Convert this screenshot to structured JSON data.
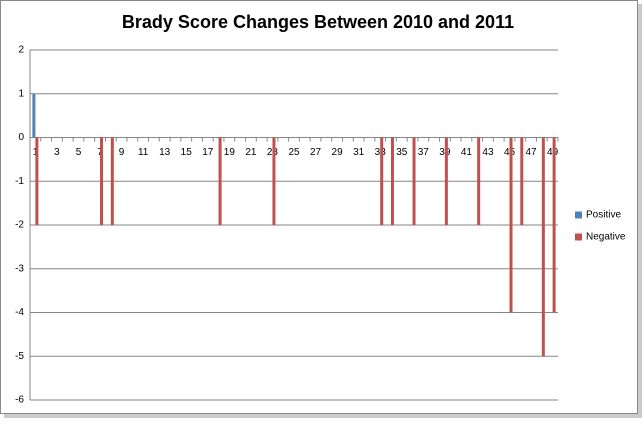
{
  "chart_data": {
    "type": "bar",
    "title": "Brady Score Changes Between 2010 and 2011",
    "categories": [
      1,
      null,
      3,
      null,
      5,
      null,
      7,
      null,
      9,
      null,
      11,
      null,
      13,
      null,
      15,
      null,
      17,
      null,
      19,
      null,
      21,
      null,
      23,
      null,
      25,
      null,
      27,
      null,
      29,
      null,
      31,
      null,
      33,
      null,
      35,
      null,
      37,
      null,
      39,
      null,
      41,
      null,
      43,
      null,
      45,
      null,
      47,
      null,
      49
    ],
    "series": [
      {
        "name": "Positive",
        "color": "#4f81bd",
        "values": [
          1,
          0,
          0,
          0,
          0,
          0,
          0,
          0,
          0,
          0,
          0,
          0,
          0,
          0,
          0,
          0,
          0,
          0,
          0,
          0,
          0,
          0,
          0,
          0,
          0,
          0,
          0,
          0,
          0,
          0,
          0,
          0,
          0,
          0,
          0,
          0,
          0,
          0,
          0,
          0,
          0,
          0,
          0,
          0,
          0,
          0,
          0,
          0,
          0
        ]
      },
      {
        "name": "Negative",
        "color": "#c0504d",
        "values": [
          -2,
          0,
          0,
          0,
          0,
          0,
          -2,
          -2,
          0,
          0,
          0,
          0,
          0,
          0,
          0,
          0,
          0,
          -2,
          0,
          0,
          0,
          0,
          -2,
          0,
          0,
          0,
          0,
          0,
          0,
          0,
          0,
          0,
          -2,
          -2,
          0,
          -2,
          0,
          0,
          -2,
          0,
          0,
          -2,
          0,
          0,
          -4,
          -2,
          0,
          -5,
          -4
        ]
      }
    ],
    "ylim": [
      -6,
      2
    ],
    "yticks": [
      -6,
      -5,
      -4,
      -3,
      -2,
      -1,
      0,
      1,
      2
    ],
    "grid": true,
    "legend": "right"
  }
}
